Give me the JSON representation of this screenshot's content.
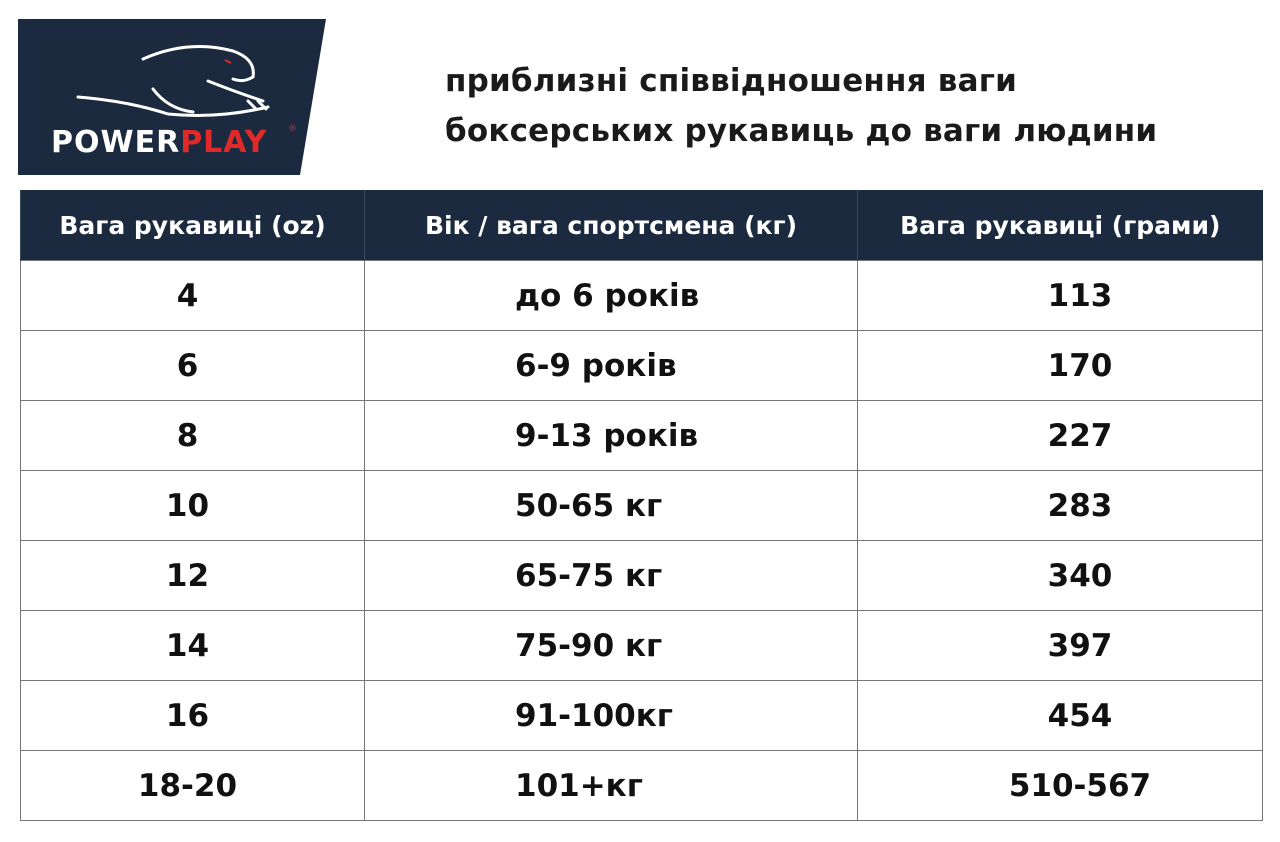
{
  "logo": {
    "text_white": "POWER",
    "text_red": "PLAY",
    "registered": "®",
    "bg": "#1b2a3e",
    "accent": "#e02a2a"
  },
  "title": {
    "line1": "приблизні співвідношення ваги",
    "line2": "боксерських рукавиць до ваги людини"
  },
  "table": {
    "headers": [
      "Вага рукавиці (oz)",
      "Вік / вага спортсмена (кг)",
      "Вага рукавиці (грами)"
    ],
    "rows": [
      [
        "4",
        "до 6 років",
        "113"
      ],
      [
        "6",
        "6-9 років",
        "170"
      ],
      [
        "8",
        "9-13 років",
        "227"
      ],
      [
        "10",
        "50-65 кг",
        "283"
      ],
      [
        "12",
        "65-75 кг",
        "340"
      ],
      [
        "14",
        "75-90 кг",
        "397"
      ],
      [
        "16",
        "91-100кг",
        "454"
      ],
      [
        "18-20",
        "101+кг",
        "510-567"
      ]
    ]
  }
}
